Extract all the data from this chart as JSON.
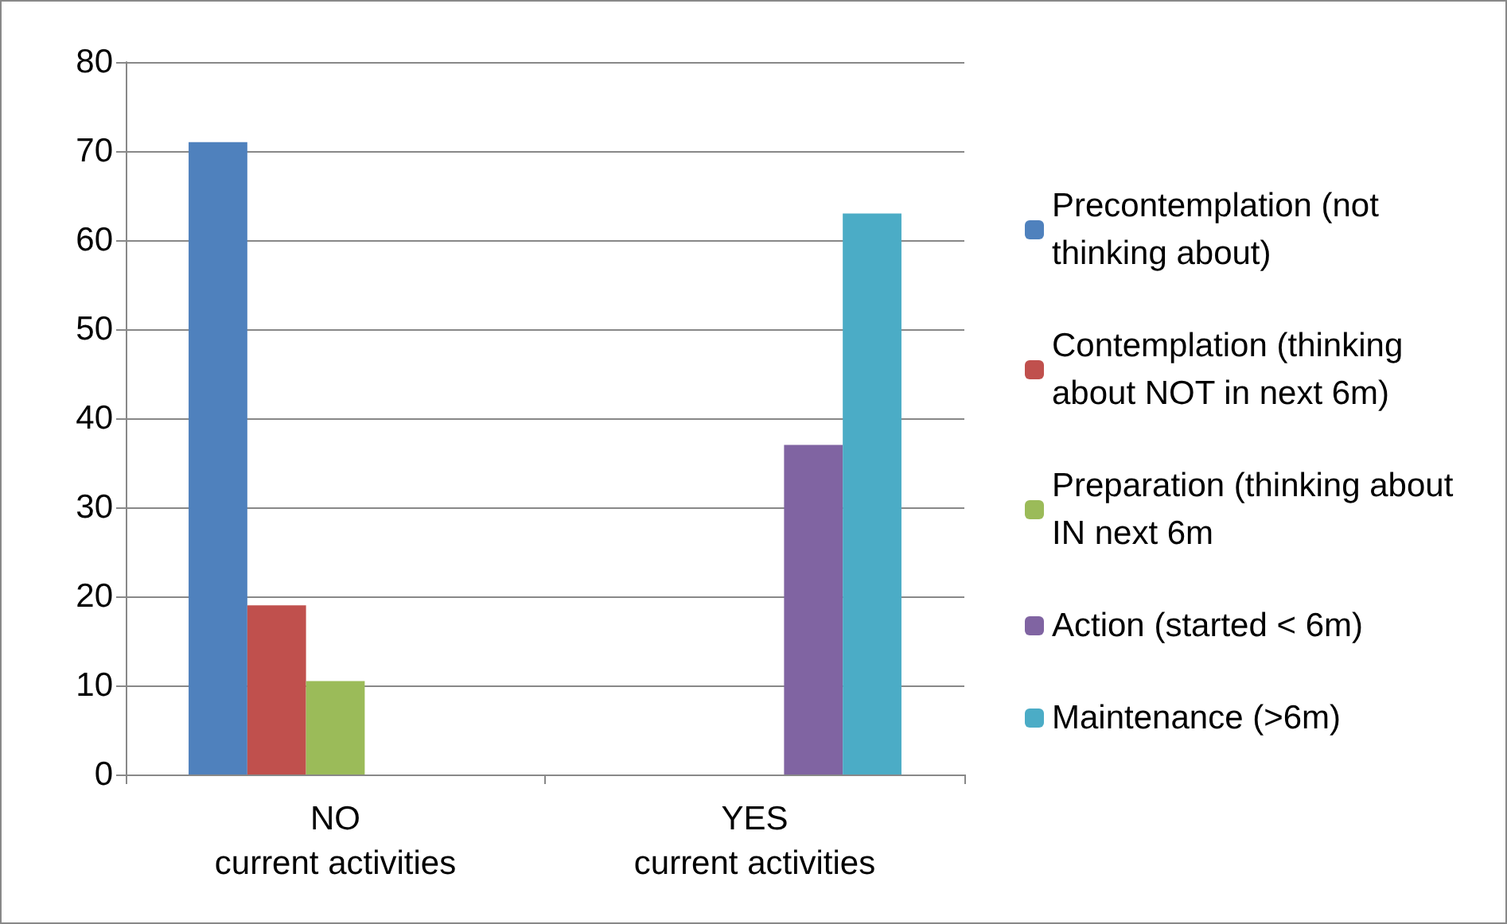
{
  "chart_data": {
    "type": "bar",
    "categories": [
      "NO\ncurrent activities",
      "YES\ncurrent activities"
    ],
    "series": [
      {
        "name": "Precontemplation (not thinking about)",
        "color": "#4f81bd",
        "values": [
          71,
          null
        ]
      },
      {
        "name": "Contemplation (thinking about NOT in next 6m)",
        "color": "#c0504d",
        "values": [
          19,
          null
        ]
      },
      {
        "name": "Preparation (thinking about IN next 6m",
        "color": "#9bbb59",
        "values": [
          10.5,
          null
        ]
      },
      {
        "name": "Action (started < 6m)",
        "color": "#8064a2",
        "values": [
          null,
          37
        ]
      },
      {
        "name": "Maintenance (>6m)",
        "color": "#4bacc6",
        "values": [
          null,
          63
        ]
      }
    ],
    "ylim": [
      0,
      80
    ],
    "yticks": [
      0,
      10,
      20,
      30,
      40,
      50,
      60,
      70,
      80
    ],
    "grid": "y",
    "legend": "right"
  }
}
